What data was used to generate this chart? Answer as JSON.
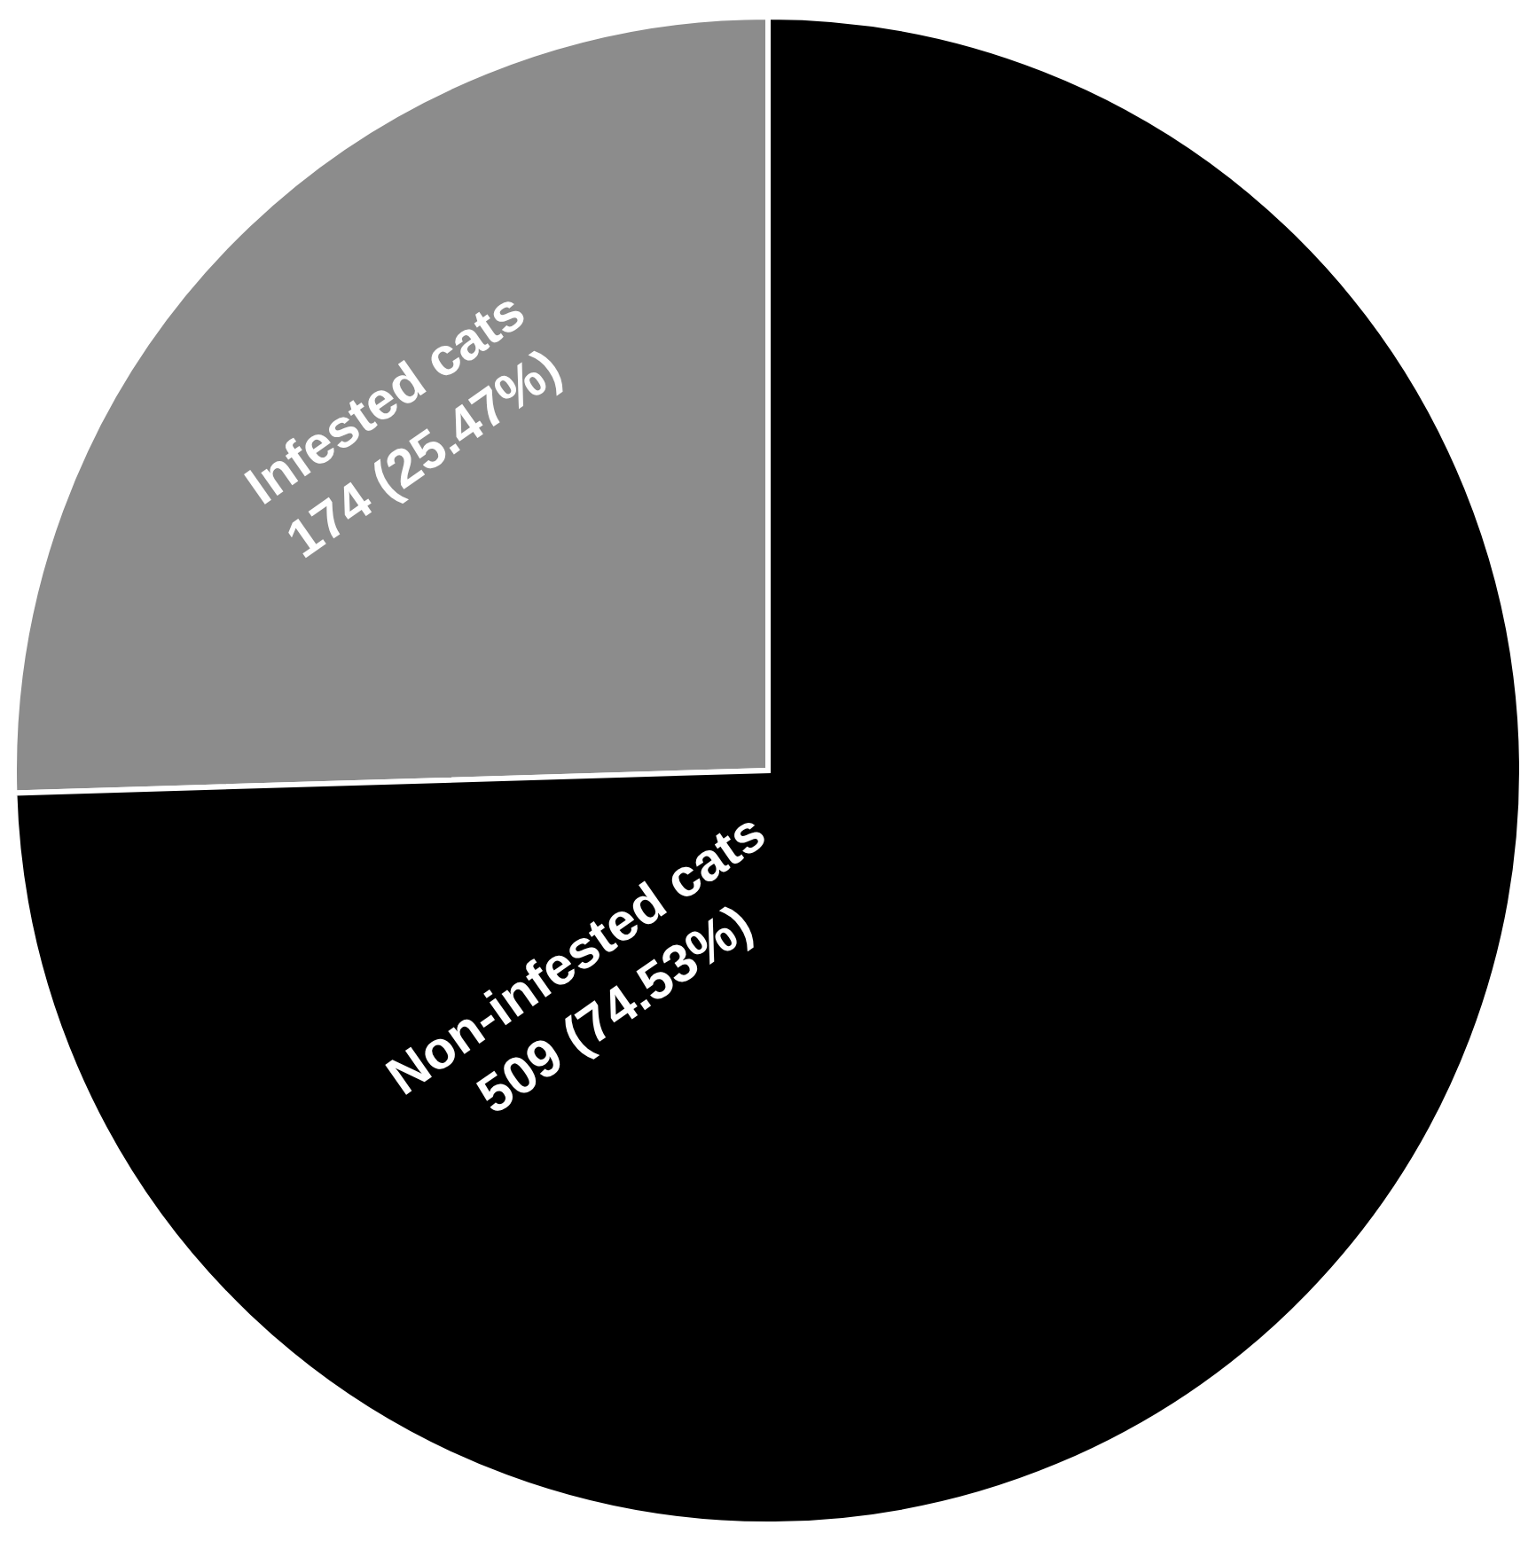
{
  "chart_data": {
    "type": "pie",
    "categories": [
      "Infested cats",
      "Non-infested cats"
    ],
    "values": [
      174,
      509
    ],
    "colors": [
      "#8c8c8c",
      "#000000"
    ],
    "value_labels": [
      "174 (25.47%)",
      "509 (74.53%)"
    ],
    "legend": false
  }
}
